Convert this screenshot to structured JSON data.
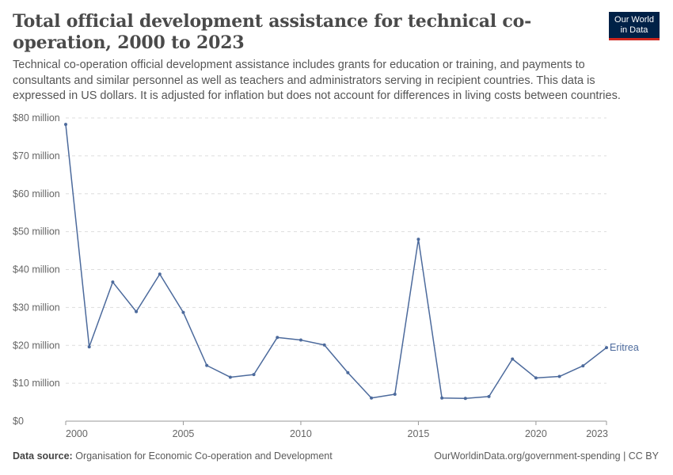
{
  "header": {
    "title": "Total official development assistance for technical co-operation, 2000 to 2023",
    "subtitle": "Technical co-operation official development assistance includes grants for education or training, and payments to consultants and similar personnel as well as teachers and administrators serving in recipient countries. This data is expressed in US dollars. It is adjusted for inflation but does not account for differences in living costs between countries."
  },
  "logo": {
    "line1": "Our World",
    "line2": "in Data",
    "bg_color": "#002147",
    "accent_color": "#ce261e"
  },
  "footer": {
    "source_label": "Data source:",
    "source_text": "Organisation for Economic Co-operation and Development",
    "url_license": "OurWorldinData.org/government-spending | CC BY"
  },
  "chart_data": {
    "type": "line",
    "title": "Total official development assistance for technical co-operation, 2000 to 2023",
    "xlim": [
      2000,
      2023
    ],
    "ylim": [
      0,
      80
    ],
    "x_ticks": [
      2000,
      2005,
      2010,
      2015,
      2020,
      2023
    ],
    "y_ticks": [
      {
        "value": 0,
        "label": "$0"
      },
      {
        "value": 10,
        "label": "$10 million"
      },
      {
        "value": 20,
        "label": "$20 million"
      },
      {
        "value": 30,
        "label": "$30 million"
      },
      {
        "value": 40,
        "label": "$40 million"
      },
      {
        "value": 50,
        "label": "$50 million"
      },
      {
        "value": 60,
        "label": "$60 million"
      },
      {
        "value": 70,
        "label": "$70 million"
      },
      {
        "value": 80,
        "label": "$80 million"
      }
    ],
    "grid": "horizontal-dashed",
    "series": [
      {
        "name": "Eritrea",
        "color": "#4c6a9c",
        "x": [
          2000,
          2001,
          2002,
          2003,
          2004,
          2005,
          2006,
          2007,
          2008,
          2009,
          2010,
          2011,
          2012,
          2013,
          2014,
          2015,
          2016,
          2017,
          2018,
          2019,
          2020,
          2021,
          2022,
          2023
        ],
        "values": [
          78.3,
          19.6,
          36.7,
          28.9,
          38.8,
          28.7,
          14.7,
          11.6,
          12.3,
          22.1,
          21.4,
          20.1,
          12.8,
          6.1,
          7.1,
          48.0,
          6.1,
          6.0,
          6.5,
          16.4,
          11.4,
          11.8,
          14.6,
          19.4
        ]
      }
    ]
  }
}
